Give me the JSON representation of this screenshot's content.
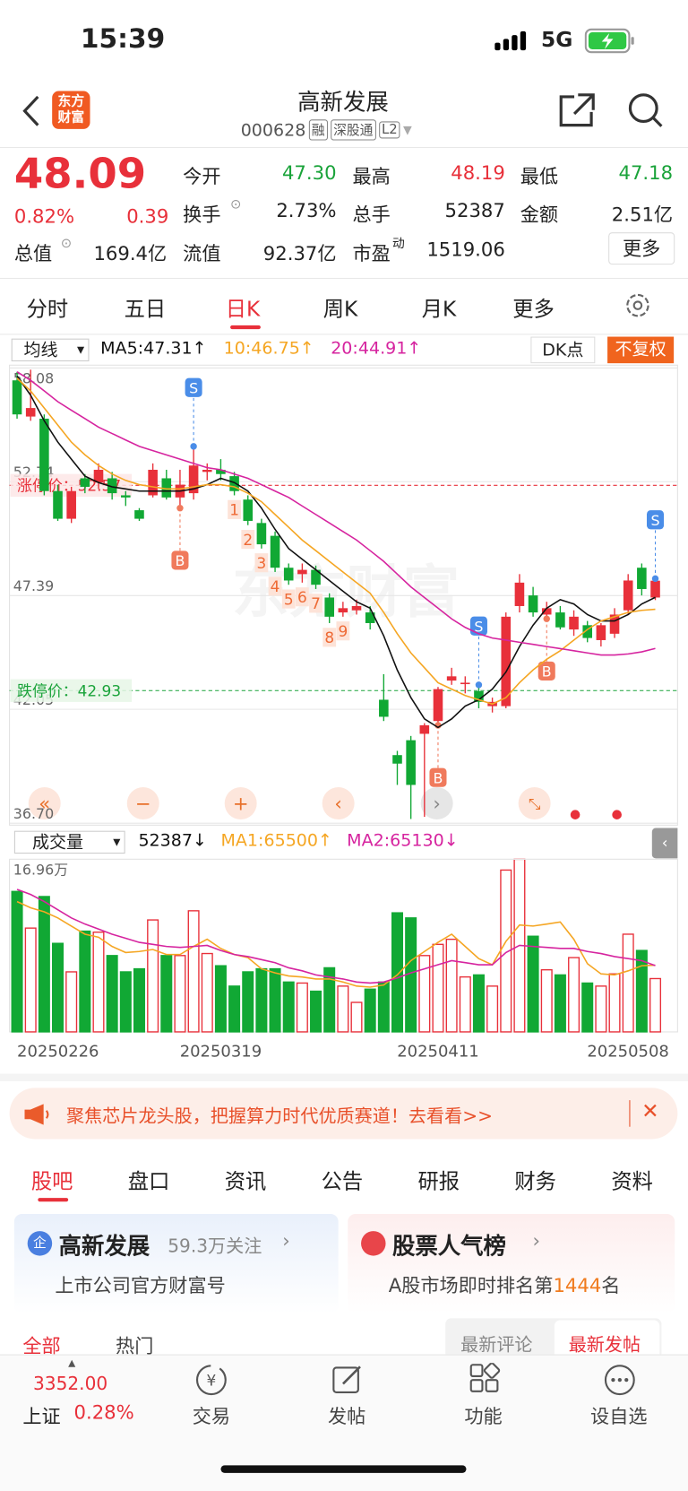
{
  "status_bar": {
    "time": "15:39",
    "network": "5G"
  },
  "header": {
    "logo": "东方财富",
    "title": "高新发展",
    "code": "000628",
    "badges": [
      "融",
      "深股通",
      "L2"
    ]
  },
  "quote": {
    "price": "48.09",
    "change_pct": "0.82%",
    "change": "0.39",
    "rows": [
      [
        {
          "label": "今开",
          "value": "47.30"
        },
        {
          "label": "最高",
          "value": "48.19"
        },
        {
          "label": "最低",
          "value": "47.18"
        }
      ],
      [
        {
          "label": "换手",
          "value": "2.73%"
        },
        {
          "label": "总手",
          "value": "52387"
        },
        {
          "label": "金额",
          "value": "2.51亿"
        }
      ],
      [
        {
          "label": "总值",
          "value": "169.4亿"
        },
        {
          "label": "流值",
          "value": "92.37亿"
        },
        {
          "label": "市盈",
          "sup": "动",
          "value": "1519.06"
        }
      ]
    ],
    "more": "更多"
  },
  "chart_tabs": [
    "分时",
    "五日",
    "日K",
    "周K",
    "月K",
    "更多"
  ],
  "chart_toolbar": {
    "indicator": "均线",
    "ma_legend": [
      "MA5:47.31↑",
      "10:46.75↑",
      "20:44.91↑"
    ],
    "dk": "DK点",
    "adjust": "不复权"
  },
  "chart_data": {
    "type": "candlestick",
    "watermark": "东方财富",
    "ylim": [
      36.7,
      58.08
    ],
    "yticks": [
      58.08,
      52.74,
      47.39,
      42.05,
      {
        "value": 36.7,
        "label": "36.70"
      }
    ],
    "grid": true,
    "limit_lines": [
      {
        "name": "涨停价：",
        "value": 52.57,
        "color": "#e8303a"
      },
      {
        "name": "跌停价：",
        "value": 42.93,
        "color": "#1aa33a"
      }
    ],
    "up_color": "#e8303a",
    "down_color": "#11a834",
    "dates": [
      "20250226",
      null,
      null,
      null,
      null,
      null,
      null,
      null,
      null,
      null,
      null,
      null,
      null,
      null,
      null,
      "20250319",
      null,
      null,
      null,
      null,
      null,
      null,
      null,
      null,
      null,
      null,
      null,
      null,
      null,
      null,
      null,
      "20250411",
      null,
      null,
      null,
      null,
      null,
      null,
      null,
      null,
      null,
      null,
      null,
      null,
      null,
      null,
      null,
      "20250508"
    ],
    "candles": [
      {
        "open": 57.5,
        "close": 55.9,
        "high": 57.9,
        "low": 55.7,
        "volume": 138000
      },
      {
        "open": 55.8,
        "close": 56.2,
        "high": 58.0,
        "low": 55.6,
        "volume": 102000
      },
      {
        "open": 55.7,
        "close": 52.3,
        "high": 55.9,
        "low": 52.1,
        "volume": 133000
      },
      {
        "open": 52.3,
        "close": 51.0,
        "high": 52.6,
        "low": 50.9,
        "volume": 87000
      },
      {
        "open": 51.0,
        "close": 52.3,
        "high": 52.5,
        "low": 50.8,
        "volume": 59000
      },
      {
        "open": 52.9,
        "close": 52.5,
        "high": 53.1,
        "low": 52.2,
        "volume": 99000
      },
      {
        "open": 52.7,
        "close": 53.3,
        "high": 53.6,
        "low": 52.4,
        "volume": 98000
      },
      {
        "open": 52.9,
        "close": 52.2,
        "high": 53.2,
        "low": 51.9,
        "volume": 75000
      },
      {
        "open": 52.1,
        "close": 52.0,
        "high": 52.3,
        "low": 51.6,
        "volume": 59000
      },
      {
        "open": 51.4,
        "close": 51.0,
        "high": 51.5,
        "low": 50.9,
        "volume": 62000
      },
      {
        "open": 52.1,
        "close": 53.3,
        "high": 53.6,
        "low": 52.0,
        "volume": 110000
      },
      {
        "open": 52.9,
        "close": 52.0,
        "high": 53.3,
        "low": 51.9,
        "volume": 75000
      },
      {
        "open": 52.0,
        "close": 52.6,
        "high": 53.3,
        "low": 51.5,
        "volume": 75000,
        "signal": "B"
      },
      {
        "open": 52.2,
        "close": 53.5,
        "high": 54.4,
        "low": 51.9,
        "volume": 119000,
        "signal": "S"
      },
      {
        "open": 53.2,
        "close": 53.3,
        "high": 53.6,
        "low": 52.8,
        "volume": 77000
      },
      {
        "open": 53.3,
        "close": 53.1,
        "high": 53.8,
        "low": 52.8,
        "volume": 65000
      },
      {
        "open": 53.0,
        "close": 52.3,
        "high": 53.2,
        "low": 52.1,
        "volume": 45000,
        "tag": "1"
      },
      {
        "open": 51.9,
        "close": 50.9,
        "high": 52.1,
        "low": 50.7,
        "volume": 59000,
        "tag": "2"
      },
      {
        "open": 50.8,
        "close": 49.8,
        "high": 51.0,
        "low": 49.6,
        "volume": 62000,
        "tag": "3"
      },
      {
        "open": 50.2,
        "close": 48.7,
        "high": 50.4,
        "low": 48.5,
        "volume": 62000,
        "tag": "4"
      },
      {
        "open": 48.7,
        "close": 48.1,
        "high": 48.9,
        "low": 47.9,
        "volume": 49000,
        "tag": "5"
      },
      {
        "open": 48.4,
        "close": 48.6,
        "high": 48.9,
        "low": 48.0,
        "volume": 48000,
        "tag": "6"
      },
      {
        "open": 48.6,
        "close": 47.9,
        "high": 48.8,
        "low": 47.7,
        "volume": 40000,
        "tag": "7"
      },
      {
        "open": 47.3,
        "close": 46.4,
        "high": 47.5,
        "low": 46.1,
        "volume": 63000,
        "tag": "8"
      },
      {
        "open": 46.6,
        "close": 46.8,
        "high": 47.1,
        "low": 46.4,
        "volume": 45000,
        "tag": "9"
      },
      {
        "open": 46.7,
        "close": 46.9,
        "high": 47.2,
        "low": 46.5,
        "volume": 29000
      },
      {
        "open": 46.6,
        "close": 46.1,
        "high": 46.9,
        "low": 45.8,
        "volume": 42000
      },
      {
        "open": 42.5,
        "close": 41.7,
        "high": 43.7,
        "low": 41.5,
        "volume": 49000
      },
      {
        "open": 39.9,
        "close": 39.5,
        "high": 40.1,
        "low": 38.5,
        "volume": 117000
      },
      {
        "open": 40.6,
        "close": 38.5,
        "high": 40.8,
        "low": 36.9,
        "volume": 112000
      },
      {
        "open": 40.9,
        "close": 41.3,
        "high": 41.4,
        "low": 37.0,
        "volume": 75000
      },
      {
        "open": 41.5,
        "close": 43.0,
        "high": 43.1,
        "low": 41.3,
        "volume": 86000,
        "signal": "B"
      },
      {
        "open": 43.4,
        "close": 43.6,
        "high": 44.0,
        "low": 43.2,
        "volume": 91000
      },
      {
        "open": 43.3,
        "close": 43.3,
        "high": 43.6,
        "low": 42.8,
        "volume": 54000
      },
      {
        "open": 42.9,
        "close": 42.4,
        "high": 43.2,
        "low": 42.1,
        "volume": 56000,
        "signal": "S"
      },
      {
        "open": 42.2,
        "close": 42.4,
        "high": 42.6,
        "low": 41.9,
        "volume": 45000
      },
      {
        "open": 42.2,
        "close": 46.4,
        "high": 46.6,
        "low": 42.1,
        "volume": 159000
      },
      {
        "open": 46.9,
        "close": 48.0,
        "high": 48.4,
        "low": 46.6,
        "volume": 169600
      },
      {
        "open": 47.4,
        "close": 46.6,
        "high": 47.8,
        "low": 46.4,
        "volume": 94000
      },
      {
        "open": 46.5,
        "close": 46.8,
        "high": 47.1,
        "low": 46.3,
        "volume": 61000,
        "signal": "B"
      },
      {
        "open": 46.6,
        "close": 45.9,
        "high": 46.9,
        "low": 45.8,
        "volume": 56000
      },
      {
        "open": 45.8,
        "close": 46.4,
        "high": 46.7,
        "low": 45.5,
        "volume": 73000
      },
      {
        "open": 46.0,
        "close": 45.4,
        "high": 46.2,
        "low": 45.2,
        "volume": 48000
      },
      {
        "open": 45.3,
        "close": 46.0,
        "high": 46.1,
        "low": 45.0,
        "volume": 45000
      },
      {
        "open": 45.6,
        "close": 46.5,
        "high": 46.8,
        "low": 45.4,
        "volume": 57000
      },
      {
        "open": 46.7,
        "close": 48.1,
        "high": 48.4,
        "low": 46.5,
        "volume": 96000
      },
      {
        "open": 48.7,
        "close": 47.7,
        "high": 48.9,
        "low": 47.4,
        "volume": 80000
      },
      {
        "open": 47.3,
        "close": 48.09,
        "high": 48.19,
        "low": 47.18,
        "volume": 52387,
        "signal": "S"
      }
    ],
    "ma_lines": [
      {
        "color": "#111111",
        "values": [
          57.7,
          56.8,
          55.6,
          54.6,
          53.8,
          53.0,
          52.7,
          52.5,
          52.4,
          52.3,
          52.3,
          52.3,
          52.3,
          52.4,
          52.6,
          52.9,
          52.7,
          52.3,
          51.5,
          50.5,
          49.6,
          49.1,
          48.6,
          48.1,
          47.6,
          47.1,
          46.8,
          45.5,
          43.9,
          42.6,
          41.6,
          41.2,
          41.6,
          42.2,
          42.5,
          43.0,
          43.8,
          45.0,
          46.0,
          46.8,
          47.2,
          47.0,
          46.5,
          46.2,
          46.2,
          46.5,
          47.0,
          47.31
        ]
      },
      {
        "color": "#f5a623",
        "values": [
          57.6,
          57.0,
          56.2,
          55.4,
          54.6,
          54.0,
          53.5,
          53.1,
          52.8,
          52.6,
          52.5,
          52.4,
          52.4,
          52.5,
          52.6,
          52.6,
          52.5,
          52.2,
          51.8,
          51.2,
          50.6,
          50.0,
          49.5,
          49.0,
          48.5,
          48.0,
          47.5,
          46.6,
          45.6,
          44.7,
          44.0,
          43.3,
          43.0,
          42.7,
          42.5,
          42.3,
          42.6,
          43.3,
          43.9,
          44.4,
          44.8,
          45.3,
          45.8,
          46.2,
          46.4,
          46.6,
          46.7,
          46.75
        ]
      },
      {
        "color": "#d6249f",
        "values": [
          57.9,
          57.5,
          57.0,
          56.5,
          56.1,
          55.7,
          55.3,
          55.0,
          54.7,
          54.4,
          54.2,
          54.0,
          53.8,
          53.6,
          53.4,
          53.3,
          53.1,
          52.9,
          52.6,
          52.3,
          52.0,
          51.6,
          51.2,
          50.8,
          50.4,
          50.0,
          49.5,
          49.0,
          48.4,
          47.8,
          47.3,
          46.8,
          46.3,
          45.9,
          45.6,
          45.4,
          45.3,
          45.2,
          45.1,
          45.0,
          44.9,
          44.8,
          44.7,
          44.6,
          44.6,
          44.65,
          44.75,
          44.91
        ]
      }
    ],
    "volume_toolbar": {
      "indicator": "成交量",
      "legend": [
        "52387↓",
        "MA1:65500↑",
        "MA2:65130↓"
      ]
    },
    "vlim": [
      0,
      169600
    ],
    "vticks": [
      {
        "value": 169600,
        "label": "16.96万"
      }
    ],
    "volume_ma_lines": [
      {
        "color": "#f5a623",
        "values": [
          128000,
          122000,
          118000,
          112000,
          104000,
          96000,
          93000,
          84000,
          78000,
          79000,
          81000,
          76000,
          76000,
          84000,
          91000,
          82000,
          76000,
          73000,
          62000,
          58000,
          55000,
          54000,
          52000,
          52000,
          49000,
          45000,
          44000,
          46000,
          56000,
          70000,
          79000,
          88000,
          96000,
          84000,
          72000,
          66000,
          89000,
          105000,
          104000,
          106000,
          108000,
          91000,
          67000,
          57000,
          56000,
          60000,
          65000,
          65500
        ]
      },
      {
        "color": "#d6249f",
        "values": [
          140000,
          135000,
          128000,
          120000,
          112000,
          106000,
          101000,
          96000,
          92000,
          88000,
          86000,
          84000,
          83000,
          84000,
          85000,
          80000,
          76000,
          74000,
          71000,
          68000,
          63000,
          60000,
          56000,
          54000,
          52000,
          49000,
          48000,
          49000,
          53000,
          58000,
          62000,
          66000,
          70000,
          68000,
          66000,
          66000,
          78000,
          85000,
          84000,
          83000,
          82000,
          82000,
          79000,
          77000,
          74000,
          72000,
          70000,
          65130
        ]
      }
    ]
  },
  "banner": "聚焦芯片龙头股，把握算力时代优质赛道！去看看>>",
  "section_tabs": [
    "股吧",
    "盘口",
    "资讯",
    "公告",
    "研报",
    "财务",
    "资料"
  ],
  "cards": [
    {
      "title": "高新发展",
      "meta": "59.3万关注",
      "desc": "上市公司官方财富号"
    },
    {
      "title": "股票人气榜",
      "desc": "A股市场即时排名第",
      "rank": "1444",
      "suffix": "名"
    }
  ],
  "feed_tabs": [
    "全部",
    "热门"
  ],
  "sort_tabs": [
    "最新评论",
    "最新发帖"
  ],
  "bottom_nav": {
    "index_value": "3352.00",
    "index_name": "上证",
    "index_change": "0.28%",
    "items": [
      "交易",
      "发帖",
      "功能",
      "设自选"
    ]
  }
}
